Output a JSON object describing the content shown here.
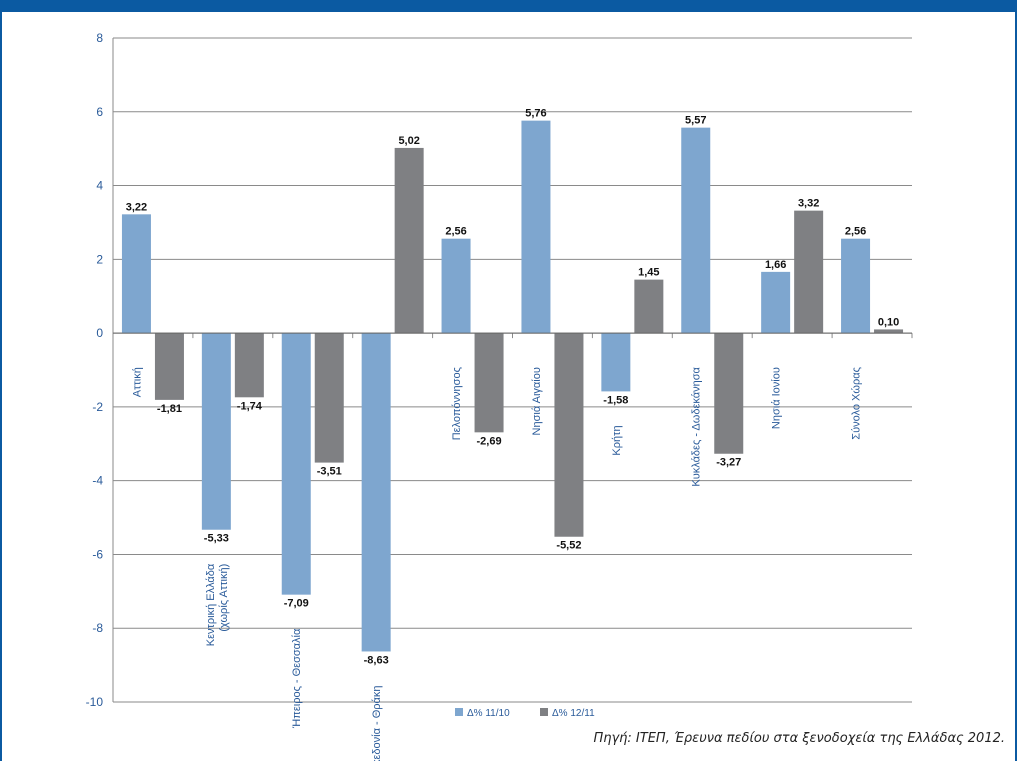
{
  "colors": {
    "band": "#0b5aa2",
    "series1": "#7ea6cf",
    "series2": "#7f8083",
    "grid": "#8a8a8a",
    "text_blue": "#2a5b9a"
  },
  "source_text": "Πηγή: ΙΤΕΠ, Έρευνα πεδίου στα ξενοδοχεία της Ελλάδας 2012.",
  "chart_data": {
    "type": "bar",
    "title": "",
    "xlabel": "",
    "ylabel": "",
    "ylim": [
      -10,
      8
    ],
    "yticks": [
      8,
      6,
      4,
      2,
      0,
      -2,
      -4,
      -6,
      -8,
      -10
    ],
    "grid": true,
    "legend_position": "bottom",
    "categories": [
      "Αττική",
      "Κεντρική Ελλάδα (χωρίς Αττική)",
      "Ήπειρος - Θεσσαλία",
      "Μακεδονία - Θράκη",
      "Πελοπόννησος",
      "Νησιά Αιγαίου",
      "Κρήτη",
      "Κυκλάδες - Δωδεκάνησα",
      "Νησιά Ιονίου",
      "Σύνολο Χώρας"
    ],
    "category_label_lines": [
      [
        "Αττική"
      ],
      [
        "Κεντρική Ελλάδα",
        "(χωρίς Αττική)"
      ],
      [
        "Ήπειρος - Θεσσαλία"
      ],
      [
        "Μακεδονία - Θράκη"
      ],
      [
        "Πελοπόννησος"
      ],
      [
        "Νησιά Αιγαίου"
      ],
      [
        "Κρήτη"
      ],
      [
        "Κυκλάδες - Δωδεκάνησα"
      ],
      [
        "Νησιά Ιονίου"
      ],
      [
        "Σύνολο Χώρας"
      ]
    ],
    "series": [
      {
        "name": "Δ% 11/10",
        "values": [
          3.22,
          -5.33,
          -7.09,
          -8.63,
          2.56,
          5.76,
          -1.58,
          5.57,
          1.66,
          2.56
        ],
        "labels": [
          "3,22",
          "-5,33",
          "-7,09",
          "-8,63",
          "2,56",
          "5,76",
          "-1,58",
          "5,57",
          "1,66",
          "2,56"
        ]
      },
      {
        "name": "Δ% 12/11",
        "values": [
          -1.81,
          -1.74,
          -3.51,
          5.02,
          -2.69,
          -5.52,
          1.45,
          -3.27,
          3.32,
          0.1
        ],
        "labels": [
          "-1,81",
          "-1,74",
          "-3,51",
          "5,02",
          "-2,69",
          "-5,52",
          "1,45",
          "-3,27",
          "3,32",
          "0,10"
        ]
      }
    ]
  }
}
